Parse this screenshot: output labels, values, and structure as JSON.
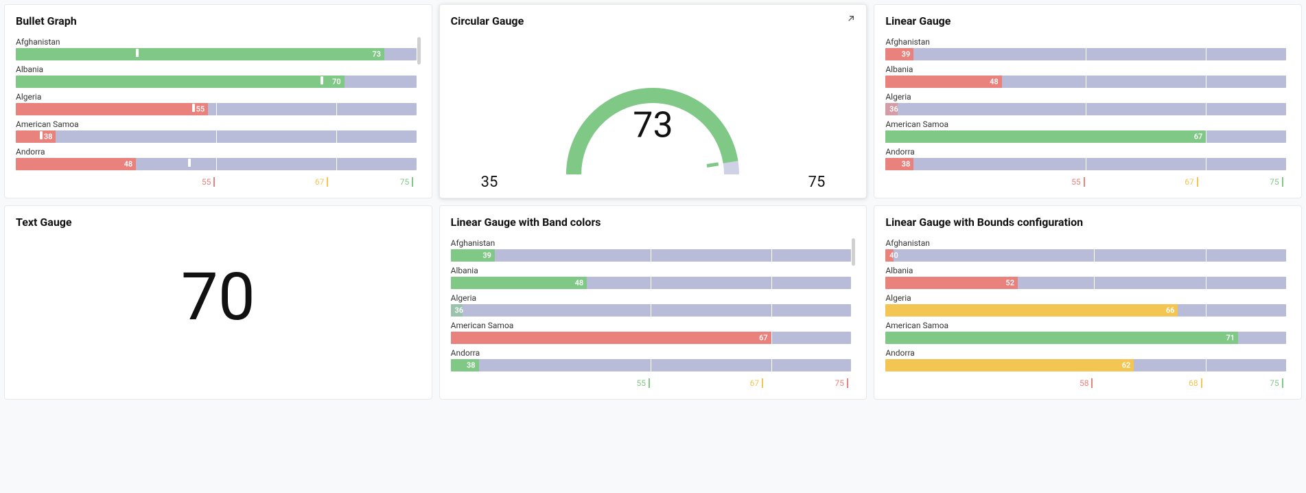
{
  "colors": {
    "green": "#7fc885",
    "red": "#e9817d",
    "yellow": "#f3c552",
    "track": "#b9bcd8",
    "track_light": "#cfd1e6",
    "text": "#111111"
  },
  "panels": {
    "bullet": {
      "title": "Bullet Graph",
      "max": 100,
      "seg_dividers_pct": [
        50,
        80
      ],
      "items": [
        {
          "label": "Afghanistan",
          "value": 73,
          "value_pct": 92,
          "marker_pct": 30,
          "color": "#7fc885"
        },
        {
          "label": "Albania",
          "value": 70,
          "value_pct": 82,
          "marker_pct": 76,
          "color": "#7fc885"
        },
        {
          "label": "Algeria",
          "value": 55,
          "value_pct": 48,
          "marker_pct": 44,
          "color": "#e9817d"
        },
        {
          "label": "American Samoa",
          "value": 38,
          "value_pct": 10,
          "marker_pct": 6,
          "color": "#e9817d"
        },
        {
          "label": "Andorra",
          "value": 48,
          "value_pct": 30,
          "marker_pct": 43,
          "color": "#e9817d"
        }
      ],
      "legend": [
        {
          "value": 55,
          "color": "#e9817d",
          "pos_pct": 50
        },
        {
          "value": 67,
          "color": "#f3c552",
          "pos_pct": 78
        },
        {
          "value": 75,
          "color": "#7fc885",
          "pos_pct": 99
        }
      ]
    },
    "circular": {
      "title": "Circular Gauge",
      "value": 73,
      "min": 35,
      "max": 75,
      "arc_color": "#7fc885",
      "track_color": "#cfd1e6",
      "fill_deg": 171
    },
    "linear": {
      "title": "Linear Gauge",
      "items": [
        {
          "label": "Afghanistan",
          "value": 39,
          "value_pct": 7,
          "color": "#e9817d"
        },
        {
          "label": "Albania",
          "value": 48,
          "value_pct": 29,
          "color": "#e9817d"
        },
        {
          "label": "Algeria",
          "value": 36,
          "value_pct": 3,
          "color": "#e9817d",
          "dim": true
        },
        {
          "label": "American Samoa",
          "value": 67,
          "value_pct": 80,
          "color": "#7fc885"
        },
        {
          "label": "Andorra",
          "value": 38,
          "value_pct": 7,
          "color": "#e9817d"
        }
      ],
      "seg_dividers_pct": [
        50,
        80
      ],
      "legend": [
        {
          "value": 55,
          "color": "#e9817d",
          "pos_pct": 50
        },
        {
          "value": 67,
          "color": "#f3c552",
          "pos_pct": 78
        },
        {
          "value": 75,
          "color": "#7fc885",
          "pos_pct": 99
        }
      ]
    },
    "text": {
      "title": "Text Gauge",
      "value": 70
    },
    "linear_band": {
      "title": "Linear Gauge with Band colors",
      "items": [
        {
          "label": "Afghanistan",
          "value": 39,
          "value_pct": 11,
          "color": "#7fc885"
        },
        {
          "label": "Albania",
          "value": 48,
          "value_pct": 34,
          "color": "#7fc885"
        },
        {
          "label": "Algeria",
          "value": 36,
          "value_pct": 3,
          "color": "#7fc885",
          "dim": true
        },
        {
          "label": "American Samoa",
          "value": 67,
          "value_pct": 80,
          "color": "#e9817d"
        },
        {
          "label": "Andorra",
          "value": 38,
          "value_pct": 7,
          "color": "#7fc885"
        }
      ],
      "seg_dividers_pct": [
        50,
        80
      ],
      "legend": [
        {
          "value": 55,
          "color": "#7fc885",
          "pos_pct": 50
        },
        {
          "value": 67,
          "color": "#f3c552",
          "pos_pct": 78
        },
        {
          "value": 75,
          "color": "#e9817d",
          "pos_pct": 99
        }
      ]
    },
    "linear_bounds": {
      "title": "Linear Gauge with Bounds configuration",
      "items": [
        {
          "label": "Afghanistan",
          "value": 40,
          "value_pct": 2,
          "color": "#e9817d"
        },
        {
          "label": "Albania",
          "value": 52,
          "value_pct": 33,
          "color": "#e9817d"
        },
        {
          "label": "Algeria",
          "value": 66,
          "value_pct": 73,
          "color": "#f3c552"
        },
        {
          "label": "American Samoa",
          "value": 71,
          "value_pct": 88,
          "color": "#7fc885"
        },
        {
          "label": "Andorra",
          "value": 62,
          "value_pct": 62,
          "color": "#f3c552"
        }
      ],
      "seg_dividers_pct": [
        52,
        80
      ],
      "legend": [
        {
          "value": 58,
          "color": "#e9817d",
          "pos_pct": 52
        },
        {
          "value": 68,
          "color": "#f3c552",
          "pos_pct": 79
        },
        {
          "value": 75,
          "color": "#7fc885",
          "pos_pct": 99
        }
      ]
    }
  }
}
